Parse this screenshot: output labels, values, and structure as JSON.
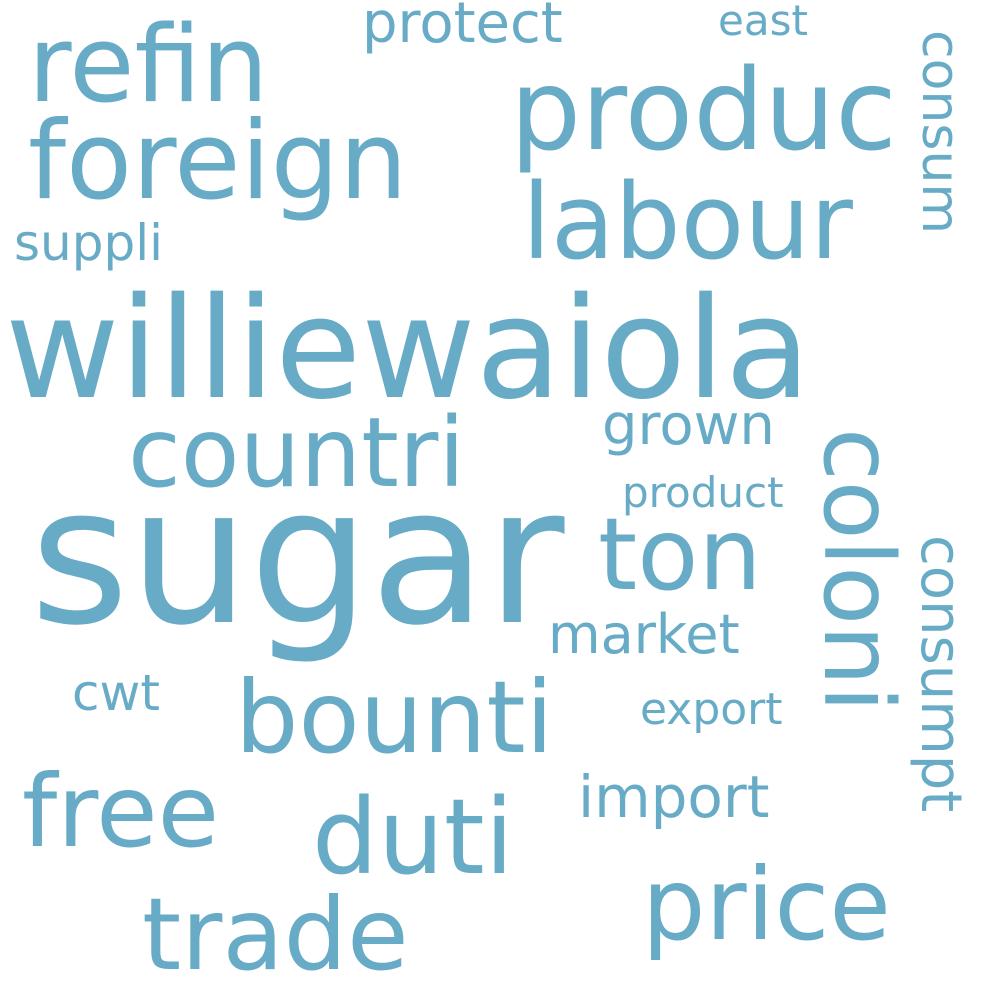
{
  "cloud": {
    "color": "#67abc6",
    "words": {
      "sugar": "sugar",
      "williewaiola": "williewaiola",
      "refin": "refin",
      "foreign": "foreign",
      "produc": "produc",
      "labour": "labour",
      "countri": "countri",
      "coloni": "coloni",
      "ton": "ton",
      "bounti": "bounti",
      "duti": "duti",
      "free": "free",
      "trade": "trade",
      "price": "price",
      "consum": "consum",
      "consumpt": "consumpt",
      "suppli": "suppli",
      "protect": "protect",
      "east": "east",
      "grown": "grown",
      "product": "product",
      "market": "market",
      "cwt": "cwt",
      "export": "export",
      "import": "import"
    }
  }
}
